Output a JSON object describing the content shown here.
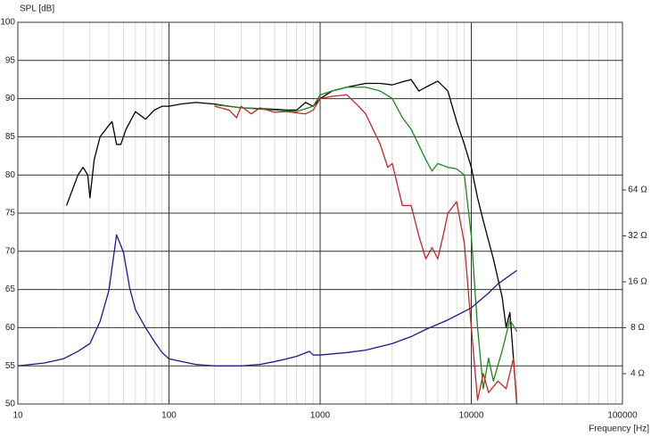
{
  "chart_data": {
    "type": "line",
    "y_label": "SPL [dB]",
    "x_label": "Frequency [Hz]",
    "xscale": "log",
    "xlim": [
      10,
      100000
    ],
    "xticks": [
      10,
      100,
      1000,
      10000,
      100000
    ],
    "ylim": [
      50,
      100
    ],
    "yticks": [
      50,
      55,
      60,
      65,
      70,
      75,
      80,
      85,
      90,
      95,
      100
    ],
    "y2scale": "log",
    "y2lim": [
      2.53,
      804
    ],
    "y2ticks": [
      {
        "value": 4,
        "label": "4 Ω"
      },
      {
        "value": 8,
        "label": "8 Ω"
      },
      {
        "value": 16,
        "label": "16 Ω"
      },
      {
        "value": 32,
        "label": "32 Ω"
      },
      {
        "value": 64,
        "label": "64 Ω"
      }
    ],
    "grid": true,
    "minor_grid": true,
    "series": [
      {
        "color": "#000000",
        "x": [
          21,
          25,
          27,
          29,
          30,
          32,
          35,
          40,
          42,
          45,
          48,
          52,
          60,
          70,
          80,
          90,
          100,
          120,
          150,
          200,
          250,
          300,
          400,
          500,
          600,
          700,
          800,
          900,
          1000,
          1200,
          1500,
          2000,
          2500,
          3000,
          3500,
          4000,
          4500,
          5000,
          6000,
          7000,
          8000,
          9000,
          10000,
          11000,
          12000,
          14000,
          16000,
          17000,
          18000,
          19000,
          20000
        ],
        "values": [
          76,
          80,
          81,
          80,
          77,
          82,
          85,
          86.5,
          87,
          84,
          84,
          86,
          88.3,
          87.3,
          88.5,
          89,
          89,
          89.3,
          89.5,
          89.3,
          89,
          88.8,
          88.7,
          88.6,
          88.5,
          88.5,
          89.5,
          89,
          90,
          91,
          91.5,
          92,
          92,
          91.8,
          92.2,
          92.5,
          91,
          91.5,
          92.3,
          91,
          87,
          84,
          81,
          77,
          74,
          69,
          64,
          60,
          62,
          56,
          50
        ]
      },
      {
        "color": "#1a8a1a",
        "x": [
          200,
          300,
          500,
          700,
          900,
          1000,
          1200,
          1500,
          2000,
          2500,
          3000,
          3500,
          4000,
          5000,
          5500,
          6000,
          7000,
          8000,
          9000,
          10000,
          11000,
          12000,
          13000,
          14000,
          16000,
          18000,
          20000
        ],
        "values": [
          89.2,
          88.8,
          88.5,
          88.3,
          89,
          90.5,
          91,
          91.5,
          91.5,
          91,
          90,
          87.5,
          86,
          82,
          80.5,
          81.5,
          81,
          80.8,
          80,
          72,
          60,
          52,
          56,
          53,
          57,
          61,
          59.5
        ]
      },
      {
        "color": "#c0282a",
        "x": [
          200,
          250,
          280,
          300,
          350,
          400,
          500,
          600,
          800,
          900,
          1000,
          1200,
          1500,
          1800,
          2000,
          2500,
          2800,
          3000,
          3500,
          4000,
          4500,
          5000,
          5500,
          6000,
          6500,
          7000,
          8000,
          9000,
          10000,
          11000,
          12000,
          13000,
          15000,
          17000,
          19000,
          20000
        ],
        "values": [
          89,
          88.5,
          87.5,
          89,
          88,
          88.8,
          88.2,
          88.3,
          88,
          88.5,
          90,
          90.3,
          90.5,
          89,
          88,
          84,
          81,
          81.5,
          76,
          76,
          72,
          69,
          70.5,
          69,
          72,
          75,
          76.5,
          71,
          60,
          50.5,
          54,
          51.5,
          53,
          52,
          56,
          50
        ]
      },
      {
        "color": "#1a1a8a",
        "axis": "y2",
        "x": [
          10,
          15,
          20,
          25,
          30,
          35,
          40,
          45,
          50,
          55,
          60,
          70,
          80,
          90,
          100,
          150,
          200,
          300,
          400,
          500,
          600,
          700,
          850,
          900,
          1000,
          1500,
          2000,
          3000,
          4000,
          5000,
          7000,
          10000,
          13000,
          15000,
          20000
        ],
        "values": [
          4.5,
          4.7,
          5.0,
          5.6,
          6.3,
          8.8,
          14,
          32.5,
          25,
          14.5,
          10.5,
          8,
          6.5,
          5.5,
          5.0,
          4.6,
          4.5,
          4.5,
          4.6,
          4.8,
          5.0,
          5.2,
          5.6,
          5.3,
          5.3,
          5.5,
          5.7,
          6.3,
          7.0,
          7.8,
          9.0,
          10.8,
          13.5,
          15.5,
          19
        ]
      }
    ]
  }
}
